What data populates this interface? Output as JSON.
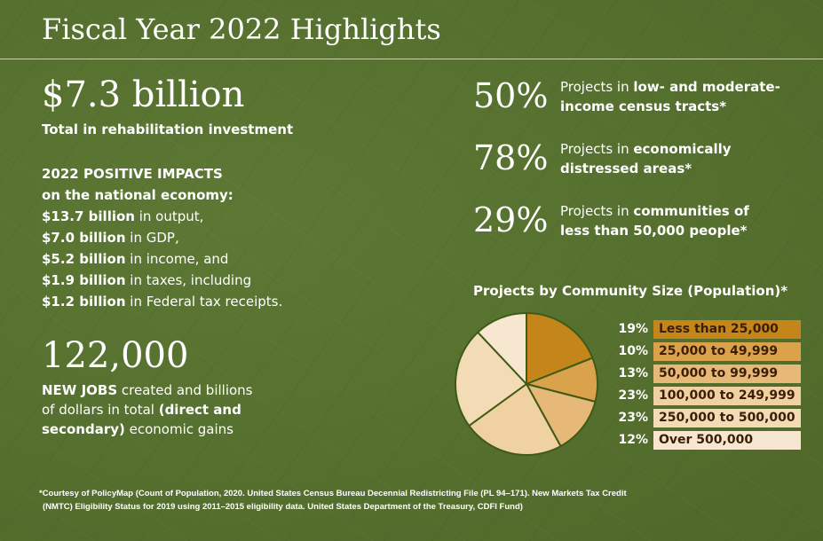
{
  "title": "Fiscal Year 2022 Highlights",
  "investment": {
    "value": "$7.3 billion",
    "label": "Total in rehabilitation investment"
  },
  "impacts": {
    "heading1": "2022 POSITIVE IMPACTS",
    "heading2": "on the national economy:",
    "lines": [
      {
        "bold": "$13.7 billion",
        "rest": " in output,"
      },
      {
        "bold": "$7.0 billion",
        "rest": " in GDP,"
      },
      {
        "bold": "$5.2 billion",
        "rest": " in income, and"
      },
      {
        "bold": "$1.9 billion",
        "rest": " in taxes, including"
      },
      {
        "bold": "$1.2 billion",
        "rest": " in Federal tax receipts."
      }
    ]
  },
  "jobs": {
    "value": "122,000",
    "bold1": "NEW JOBS",
    "text1": " created and billions",
    "text2": "of dollars in total ",
    "bold2": "(direct and",
    "bold3": "secondary)",
    "text3": " economic gains"
  },
  "stats": [
    {
      "pct": "50%",
      "plain": "Projects in ",
      "bold": "low- and moderate-",
      "bold2": "income census tracts*"
    },
    {
      "pct": "78%",
      "plain": "Projects in ",
      "bold": "economically",
      "bold2": "distressed areas*"
    },
    {
      "pct": "29%",
      "plain": "Projects in ",
      "bold": "communities of",
      "bold2": "less than 50,000 people*"
    }
  ],
  "chart_data": {
    "type": "pie",
    "title": "Projects by Community Size (Population)*",
    "categories": [
      "Less than 25,000",
      "25,000 to 49,999",
      "50,000 to 99,999",
      "100,000 to 249,999",
      "250,000 to 500,000",
      "Over 500,000"
    ],
    "values": [
      19,
      10,
      13,
      23,
      23,
      12
    ],
    "labels": [
      "19%",
      "10%",
      "13%",
      "23%",
      "23%",
      "12%"
    ],
    "colors": [
      "#c4861a",
      "#dba24c",
      "#e6b979",
      "#f0d1a2",
      "#f3dbb6",
      "#f7e6d0"
    ],
    "legend": "right"
  },
  "footnote": {
    "line1": "*Courtesy of PolicyMap (Count of Population, 2020. United States Census Bureau Decennial Redistricting File (PL 94–171). New Markets Tax Credit",
    "line2": "(NMTC) Eligibility Status for 2019 using 2011–2015 eligibility data. United States Department of the Treasury, CDFI Fund)"
  }
}
